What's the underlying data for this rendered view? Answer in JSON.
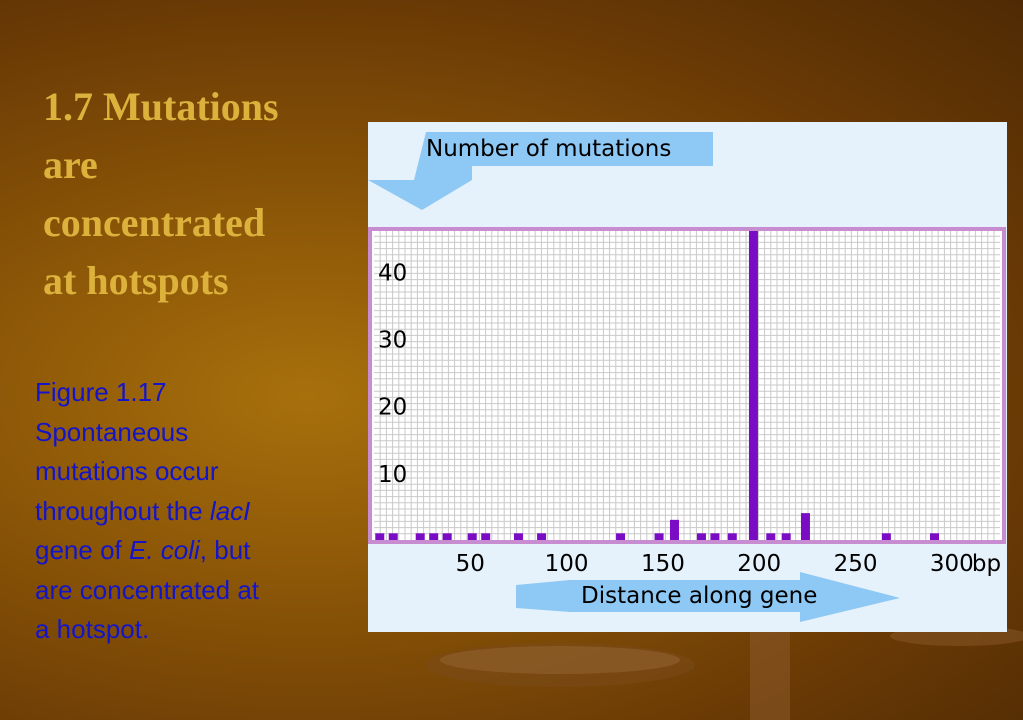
{
  "slide": {
    "title_lines": [
      "1.7 Mutations",
      "are",
      "concentrated",
      "at hotspots"
    ],
    "caption": {
      "line1": "Figure 1.17",
      "line2": "Spontaneous",
      "line3": "mutations occur",
      "line4_text": "throughout the ",
      "line4_italic": "lacI",
      "line5_text": "gene of ",
      "line5_italic": "E. coli",
      "line5_tail": ", but",
      "line6": "are concentrated at",
      "line7": "a hotspot."
    }
  },
  "chart_data": {
    "type": "bar",
    "ylabel": "Number of mutations",
    "xlabel": "Distance along gene",
    "x_unit": "bp",
    "xlim": [
      0,
      325
    ],
    "ylim": [
      0,
      46
    ],
    "x_ticks": [
      50,
      100,
      150,
      200,
      250,
      300
    ],
    "y_ticks": [
      10,
      20,
      30,
      40
    ],
    "grid": true,
    "x": [
      3,
      10,
      24,
      31,
      38,
      51,
      58,
      75,
      87,
      128,
      148,
      156,
      170,
      177,
      186,
      197,
      206,
      214,
      224,
      266,
      291
    ],
    "values": [
      1,
      1,
      1,
      1,
      1,
      1,
      1,
      1,
      1,
      1,
      1,
      3,
      1,
      1,
      1,
      46,
      1,
      1,
      4,
      1,
      1
    ],
    "colors": {
      "bar": "#7a0cc4",
      "grid": "#c9c9c9",
      "border": "#c88cd0",
      "arrow": "#8ec8f4",
      "panel": "#e6f2fb"
    }
  }
}
